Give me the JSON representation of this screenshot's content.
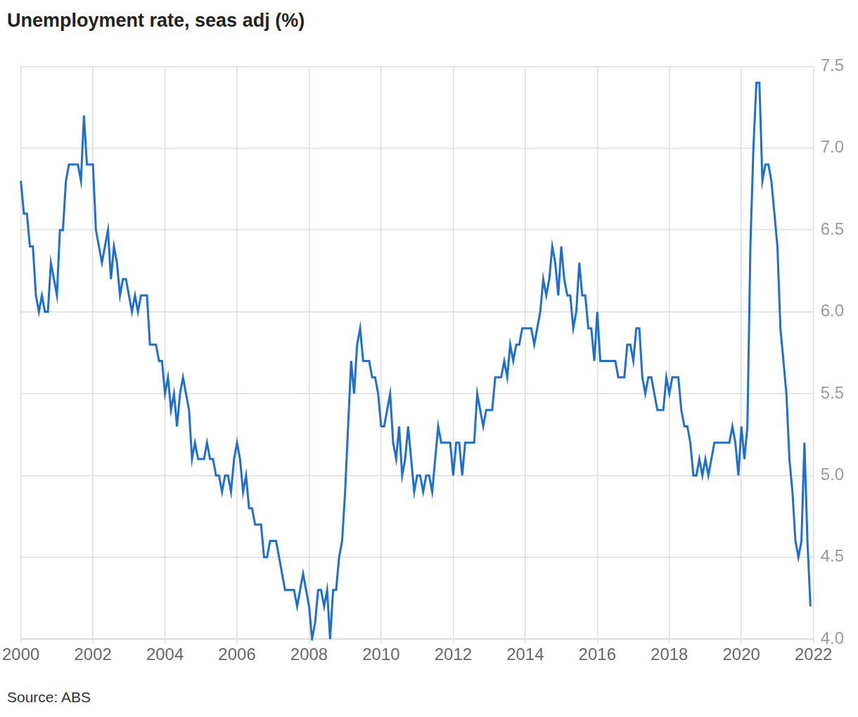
{
  "chart_data": {
    "type": "line",
    "title": "Unemployment rate, seas adj (%)",
    "source": "Source: ABS",
    "color": "#1f6fcc",
    "grid": true,
    "xlim": [
      2000,
      2022
    ],
    "xticks": [
      2000,
      2002,
      2004,
      2006,
      2008,
      2010,
      2012,
      2014,
      2016,
      2018,
      2020,
      2022
    ],
    "ylim": [
      4,
      7.5
    ],
    "yticks": [
      {
        "value": 4,
        "label": "4.0"
      },
      4.5,
      {
        "value": 5,
        "label": "5.0"
      },
      5.5,
      {
        "value": 6,
        "label": "6.0"
      },
      6.5,
      {
        "value": 7,
        "label": "7.0"
      },
      7.5
    ],
    "x": [
      2000,
      2000.083,
      2000.167,
      2000.25,
      2000.333,
      2000.417,
      2000.5,
      2000.583,
      2000.667,
      2000.75,
      2000.833,
      2000.917,
      2001,
      2001.083,
      2001.167,
      2001.25,
      2001.333,
      2001.417,
      2001.5,
      2001.583,
      2001.667,
      2001.75,
      2001.833,
      2001.917,
      2002,
      2002.083,
      2002.167,
      2002.25,
      2002.333,
      2002.417,
      2002.5,
      2002.583,
      2002.667,
      2002.75,
      2002.833,
      2002.917,
      2003,
      2003.083,
      2003.167,
      2003.25,
      2003.333,
      2003.417,
      2003.5,
      2003.583,
      2003.667,
      2003.75,
      2003.833,
      2003.917,
      2004,
      2004.083,
      2004.167,
      2004.25,
      2004.333,
      2004.417,
      2004.5,
      2004.583,
      2004.667,
      2004.75,
      2004.833,
      2004.917,
      2005,
      2005.083,
      2005.167,
      2005.25,
      2005.333,
      2005.417,
      2005.5,
      2005.583,
      2005.667,
      2005.75,
      2005.833,
      2005.917,
      2006,
      2006.083,
      2006.167,
      2006.25,
      2006.333,
      2006.417,
      2006.5,
      2006.583,
      2006.667,
      2006.75,
      2006.833,
      2006.917,
      2007,
      2007.083,
      2007.167,
      2007.25,
      2007.333,
      2007.417,
      2007.5,
      2007.583,
      2007.667,
      2007.75,
      2007.833,
      2007.917,
      2008,
      2008.083,
      2008.167,
      2008.25,
      2008.333,
      2008.417,
      2008.5,
      2008.583,
      2008.667,
      2008.75,
      2008.833,
      2008.917,
      2009,
      2009.083,
      2009.167,
      2009.25,
      2009.333,
      2009.417,
      2009.5,
      2009.583,
      2009.667,
      2009.75,
      2009.833,
      2009.917,
      2010,
      2010.083,
      2010.167,
      2010.25,
      2010.333,
      2010.417,
      2010.5,
      2010.583,
      2010.667,
      2010.75,
      2010.833,
      2010.917,
      2011,
      2011.083,
      2011.167,
      2011.25,
      2011.333,
      2011.417,
      2011.5,
      2011.583,
      2011.667,
      2011.75,
      2011.833,
      2011.917,
      2012,
      2012.083,
      2012.167,
      2012.25,
      2012.333,
      2012.417,
      2012.5,
      2012.583,
      2012.667,
      2012.75,
      2012.833,
      2012.917,
      2013,
      2013.083,
      2013.167,
      2013.25,
      2013.333,
      2013.417,
      2013.5,
      2013.583,
      2013.667,
      2013.75,
      2013.833,
      2013.917,
      2014,
      2014.083,
      2014.167,
      2014.25,
      2014.333,
      2014.417,
      2014.5,
      2014.583,
      2014.667,
      2014.75,
      2014.833,
      2014.917,
      2015,
      2015.083,
      2015.167,
      2015.25,
      2015.333,
      2015.417,
      2015.5,
      2015.583,
      2015.667,
      2015.75,
      2015.833,
      2015.917,
      2016,
      2016.083,
      2016.167,
      2016.25,
      2016.333,
      2016.417,
      2016.5,
      2016.583,
      2016.667,
      2016.75,
      2016.833,
      2016.917,
      2017,
      2017.083,
      2017.167,
      2017.25,
      2017.333,
      2017.417,
      2017.5,
      2017.583,
      2017.667,
      2017.75,
      2017.833,
      2017.917,
      2018,
      2018.083,
      2018.167,
      2018.25,
      2018.333,
      2018.417,
      2018.5,
      2018.583,
      2018.667,
      2018.75,
      2018.833,
      2018.917,
      2019,
      2019.083,
      2019.167,
      2019.25,
      2019.333,
      2019.417,
      2019.5,
      2019.583,
      2019.667,
      2019.75,
      2019.833,
      2019.917,
      2020,
      2020.083,
      2020.167,
      2020.25,
      2020.333,
      2020.417,
      2020.5,
      2020.583,
      2020.667,
      2020.75,
      2020.833,
      2020.917,
      2021,
      2021.083,
      2021.167,
      2021.25,
      2021.333,
      2021.417,
      2021.5,
      2021.583,
      2021.667,
      2021.75,
      2021.833,
      2021.917
    ],
    "values": [
      6.8,
      6.6,
      6.6,
      6.4,
      6.4,
      6.1,
      6.0,
      6.1,
      6.0,
      6.0,
      6.3,
      6.2,
      6.1,
      6.5,
      6.5,
      6.8,
      6.9,
      6.9,
      6.9,
      6.9,
      6.8,
      7.2,
      6.9,
      6.9,
      6.9,
      6.5,
      6.4,
      6.3,
      6.4,
      6.5,
      6.2,
      6.4,
      6.3,
      6.1,
      6.2,
      6.2,
      6.1,
      6.0,
      6.1,
      6.0,
      6.1,
      6.1,
      6.1,
      5.8,
      5.8,
      5.8,
      5.7,
      5.7,
      5.5,
      5.6,
      5.4,
      5.5,
      5.3,
      5.5,
      5.6,
      5.5,
      5.4,
      5.1,
      5.2,
      5.1,
      5.1,
      5.1,
      5.2,
      5.1,
      5.1,
      5.0,
      5.0,
      4.9,
      5.0,
      5.0,
      4.9,
      5.1,
      5.2,
      5.1,
      4.9,
      5.0,
      4.8,
      4.8,
      4.7,
      4.7,
      4.7,
      4.5,
      4.5,
      4.6,
      4.6,
      4.6,
      4.5,
      4.4,
      4.3,
      4.3,
      4.3,
      4.3,
      4.2,
      4.3,
      4.4,
      4.3,
      4.2,
      4.0,
      4.1,
      4.3,
      4.3,
      4.2,
      4.3,
      4.0,
      4.3,
      4.3,
      4.5,
      4.6,
      4.9,
      5.3,
      5.7,
      5.5,
      5.8,
      5.9,
      5.7,
      5.7,
      5.7,
      5.6,
      5.6,
      5.5,
      5.3,
      5.3,
      5.4,
      5.5,
      5.2,
      5.1,
      5.3,
      5.0,
      5.1,
      5.3,
      5.1,
      4.9,
      5.0,
      5.0,
      4.9,
      5.0,
      5.0,
      4.9,
      5.1,
      5.3,
      5.2,
      5.2,
      5.2,
      5.2,
      5.0,
      5.2,
      5.2,
      5.0,
      5.2,
      5.2,
      5.2,
      5.2,
      5.5,
      5.4,
      5.3,
      5.4,
      5.4,
      5.4,
      5.6,
      5.6,
      5.6,
      5.7,
      5.6,
      5.8,
      5.7,
      5.8,
      5.8,
      5.9,
      5.9,
      5.9,
      5.9,
      5.8,
      5.9,
      6.0,
      6.2,
      6.1,
      6.2,
      6.4,
      6.3,
      6.1,
      6.4,
      6.2,
      6.1,
      6.1,
      5.9,
      6.0,
      6.3,
      6.1,
      6.1,
      5.9,
      5.9,
      5.7,
      6.0,
      5.7,
      5.7,
      5.7,
      5.7,
      5.7,
      5.7,
      5.6,
      5.6,
      5.6,
      5.8,
      5.8,
      5.7,
      5.9,
      5.9,
      5.6,
      5.5,
      5.6,
      5.6,
      5.5,
      5.4,
      5.4,
      5.4,
      5.6,
      5.5,
      5.6,
      5.6,
      5.6,
      5.4,
      5.3,
      5.3,
      5.2,
      5.0,
      5.0,
      5.1,
      5.0,
      5.1,
      5.0,
      5.1,
      5.2,
      5.2,
      5.2,
      5.2,
      5.2,
      5.2,
      5.3,
      5.2,
      5.0,
      5.3,
      5.1,
      5.3,
      6.4,
      7.0,
      7.4,
      7.4,
      6.8,
      6.9,
      6.9,
      6.8,
      6.6,
      6.4,
      5.9,
      5.7,
      5.5,
      5.1,
      4.9,
      4.6,
      4.5,
      4.6,
      5.2,
      4.6,
      4.2
    ]
  }
}
